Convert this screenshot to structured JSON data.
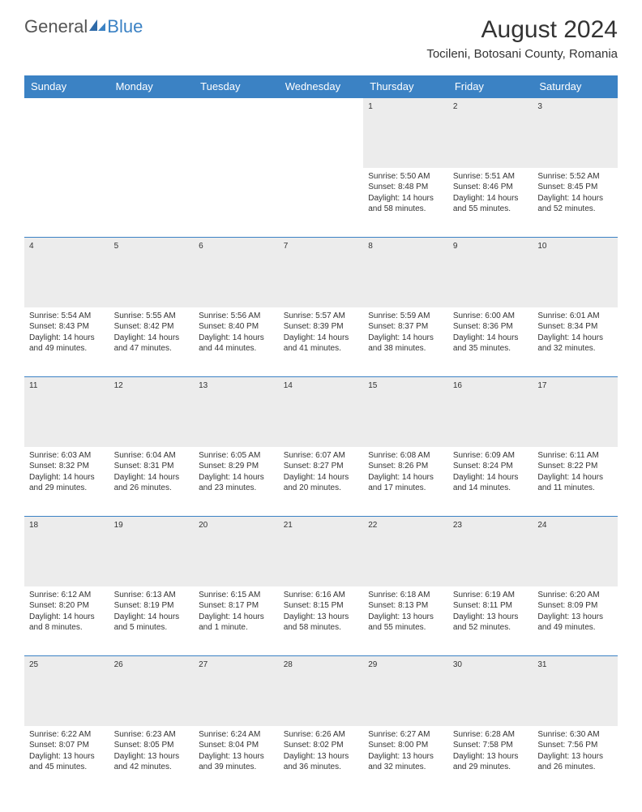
{
  "logo": {
    "text1": "General",
    "text2": "Blue"
  },
  "title": "August 2024",
  "location": "Tocileni, Botosani County, Romania",
  "colors": {
    "header_bg": "#3b82c4",
    "header_text": "#ffffff",
    "daynum_bg": "#ececec",
    "border": "#3b82c4",
    "page_bg": "#ffffff",
    "text": "#333333"
  },
  "day_headers": [
    "Sunday",
    "Monday",
    "Tuesday",
    "Wednesday",
    "Thursday",
    "Friday",
    "Saturday"
  ],
  "weeks": [
    {
      "nums": [
        "",
        "",
        "",
        "",
        "1",
        "2",
        "3"
      ],
      "cells": [
        null,
        null,
        null,
        null,
        {
          "sunrise": "Sunrise: 5:50 AM",
          "sunset": "Sunset: 8:48 PM",
          "dl1": "Daylight: 14 hours",
          "dl2": "and 58 minutes."
        },
        {
          "sunrise": "Sunrise: 5:51 AM",
          "sunset": "Sunset: 8:46 PM",
          "dl1": "Daylight: 14 hours",
          "dl2": "and 55 minutes."
        },
        {
          "sunrise": "Sunrise: 5:52 AM",
          "sunset": "Sunset: 8:45 PM",
          "dl1": "Daylight: 14 hours",
          "dl2": "and 52 minutes."
        }
      ]
    },
    {
      "nums": [
        "4",
        "5",
        "6",
        "7",
        "8",
        "9",
        "10"
      ],
      "cells": [
        {
          "sunrise": "Sunrise: 5:54 AM",
          "sunset": "Sunset: 8:43 PM",
          "dl1": "Daylight: 14 hours",
          "dl2": "and 49 minutes."
        },
        {
          "sunrise": "Sunrise: 5:55 AM",
          "sunset": "Sunset: 8:42 PM",
          "dl1": "Daylight: 14 hours",
          "dl2": "and 47 minutes."
        },
        {
          "sunrise": "Sunrise: 5:56 AM",
          "sunset": "Sunset: 8:40 PM",
          "dl1": "Daylight: 14 hours",
          "dl2": "and 44 minutes."
        },
        {
          "sunrise": "Sunrise: 5:57 AM",
          "sunset": "Sunset: 8:39 PM",
          "dl1": "Daylight: 14 hours",
          "dl2": "and 41 minutes."
        },
        {
          "sunrise": "Sunrise: 5:59 AM",
          "sunset": "Sunset: 8:37 PM",
          "dl1": "Daylight: 14 hours",
          "dl2": "and 38 minutes."
        },
        {
          "sunrise": "Sunrise: 6:00 AM",
          "sunset": "Sunset: 8:36 PM",
          "dl1": "Daylight: 14 hours",
          "dl2": "and 35 minutes."
        },
        {
          "sunrise": "Sunrise: 6:01 AM",
          "sunset": "Sunset: 8:34 PM",
          "dl1": "Daylight: 14 hours",
          "dl2": "and 32 minutes."
        }
      ]
    },
    {
      "nums": [
        "11",
        "12",
        "13",
        "14",
        "15",
        "16",
        "17"
      ],
      "cells": [
        {
          "sunrise": "Sunrise: 6:03 AM",
          "sunset": "Sunset: 8:32 PM",
          "dl1": "Daylight: 14 hours",
          "dl2": "and 29 minutes."
        },
        {
          "sunrise": "Sunrise: 6:04 AM",
          "sunset": "Sunset: 8:31 PM",
          "dl1": "Daylight: 14 hours",
          "dl2": "and 26 minutes."
        },
        {
          "sunrise": "Sunrise: 6:05 AM",
          "sunset": "Sunset: 8:29 PM",
          "dl1": "Daylight: 14 hours",
          "dl2": "and 23 minutes."
        },
        {
          "sunrise": "Sunrise: 6:07 AM",
          "sunset": "Sunset: 8:27 PM",
          "dl1": "Daylight: 14 hours",
          "dl2": "and 20 minutes."
        },
        {
          "sunrise": "Sunrise: 6:08 AM",
          "sunset": "Sunset: 8:26 PM",
          "dl1": "Daylight: 14 hours",
          "dl2": "and 17 minutes."
        },
        {
          "sunrise": "Sunrise: 6:09 AM",
          "sunset": "Sunset: 8:24 PM",
          "dl1": "Daylight: 14 hours",
          "dl2": "and 14 minutes."
        },
        {
          "sunrise": "Sunrise: 6:11 AM",
          "sunset": "Sunset: 8:22 PM",
          "dl1": "Daylight: 14 hours",
          "dl2": "and 11 minutes."
        }
      ]
    },
    {
      "nums": [
        "18",
        "19",
        "20",
        "21",
        "22",
        "23",
        "24"
      ],
      "cells": [
        {
          "sunrise": "Sunrise: 6:12 AM",
          "sunset": "Sunset: 8:20 PM",
          "dl1": "Daylight: 14 hours",
          "dl2": "and 8 minutes."
        },
        {
          "sunrise": "Sunrise: 6:13 AM",
          "sunset": "Sunset: 8:19 PM",
          "dl1": "Daylight: 14 hours",
          "dl2": "and 5 minutes."
        },
        {
          "sunrise": "Sunrise: 6:15 AM",
          "sunset": "Sunset: 8:17 PM",
          "dl1": "Daylight: 14 hours",
          "dl2": "and 1 minute."
        },
        {
          "sunrise": "Sunrise: 6:16 AM",
          "sunset": "Sunset: 8:15 PM",
          "dl1": "Daylight: 13 hours",
          "dl2": "and 58 minutes."
        },
        {
          "sunrise": "Sunrise: 6:18 AM",
          "sunset": "Sunset: 8:13 PM",
          "dl1": "Daylight: 13 hours",
          "dl2": "and 55 minutes."
        },
        {
          "sunrise": "Sunrise: 6:19 AM",
          "sunset": "Sunset: 8:11 PM",
          "dl1": "Daylight: 13 hours",
          "dl2": "and 52 minutes."
        },
        {
          "sunrise": "Sunrise: 6:20 AM",
          "sunset": "Sunset: 8:09 PM",
          "dl1": "Daylight: 13 hours",
          "dl2": "and 49 minutes."
        }
      ]
    },
    {
      "nums": [
        "25",
        "26",
        "27",
        "28",
        "29",
        "30",
        "31"
      ],
      "cells": [
        {
          "sunrise": "Sunrise: 6:22 AM",
          "sunset": "Sunset: 8:07 PM",
          "dl1": "Daylight: 13 hours",
          "dl2": "and 45 minutes."
        },
        {
          "sunrise": "Sunrise: 6:23 AM",
          "sunset": "Sunset: 8:05 PM",
          "dl1": "Daylight: 13 hours",
          "dl2": "and 42 minutes."
        },
        {
          "sunrise": "Sunrise: 6:24 AM",
          "sunset": "Sunset: 8:04 PM",
          "dl1": "Daylight: 13 hours",
          "dl2": "and 39 minutes."
        },
        {
          "sunrise": "Sunrise: 6:26 AM",
          "sunset": "Sunset: 8:02 PM",
          "dl1": "Daylight: 13 hours",
          "dl2": "and 36 minutes."
        },
        {
          "sunrise": "Sunrise: 6:27 AM",
          "sunset": "Sunset: 8:00 PM",
          "dl1": "Daylight: 13 hours",
          "dl2": "and 32 minutes."
        },
        {
          "sunrise": "Sunrise: 6:28 AM",
          "sunset": "Sunset: 7:58 PM",
          "dl1": "Daylight: 13 hours",
          "dl2": "and 29 minutes."
        },
        {
          "sunrise": "Sunrise: 6:30 AM",
          "sunset": "Sunset: 7:56 PM",
          "dl1": "Daylight: 13 hours",
          "dl2": "and 26 minutes."
        }
      ]
    }
  ]
}
